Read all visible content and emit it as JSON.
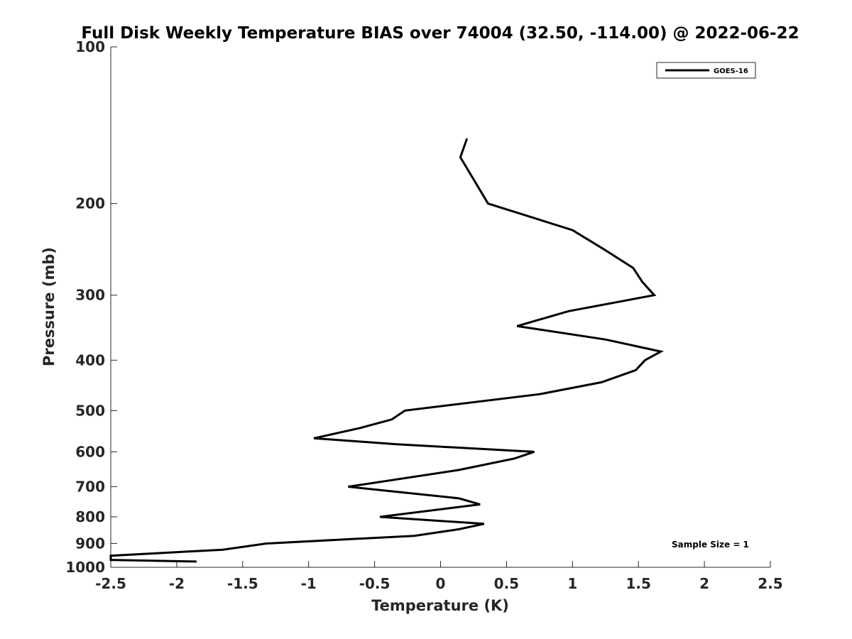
{
  "chart_data": {
    "type": "line",
    "title": "Full Disk Weekly Temperature BIAS over 74004 (32.50, -114.00) @ 2022-06-22",
    "xlabel": "Temperature (K)",
    "ylabel": "Pressure (mb)",
    "xlim": [
      -2.5,
      2.5
    ],
    "ylim": [
      100,
      1000
    ],
    "yscale": "log",
    "y_reversed": true,
    "grid": false,
    "legend_position": "top-right",
    "x_ticks": [
      -2.5,
      -2,
      -1.5,
      -1,
      -0.5,
      0,
      0.5,
      1,
      1.5,
      2,
      2.5
    ],
    "x_tick_labels": [
      "-2.5",
      "-2",
      "-1.5",
      "-1",
      "-0.5",
      "0",
      "0.5",
      "1",
      "1.5",
      "2",
      "2.5"
    ],
    "y_ticks": [
      100,
      200,
      300,
      400,
      500,
      600,
      700,
      800,
      900,
      1000
    ],
    "y_tick_labels": [
      "100",
      "200",
      "300",
      "400",
      "500",
      "600",
      "700",
      "800",
      "900",
      "1000"
    ],
    "series": [
      {
        "name": "GOES-16",
        "color": "#000000",
        "points": [
          {
            "x": 0.2,
            "y": 150
          },
          {
            "x": 0.15,
            "y": 163
          },
          {
            "x": 0.36,
            "y": 200
          },
          {
            "x": 1.0,
            "y": 225
          },
          {
            "x": 1.24,
            "y": 245
          },
          {
            "x": 1.46,
            "y": 266
          },
          {
            "x": 1.53,
            "y": 283
          },
          {
            "x": 1.62,
            "y": 300
          },
          {
            "x": 0.97,
            "y": 322
          },
          {
            "x": 0.58,
            "y": 344
          },
          {
            "x": 1.25,
            "y": 365
          },
          {
            "x": 1.67,
            "y": 385
          },
          {
            "x": 1.55,
            "y": 400
          },
          {
            "x": 1.48,
            "y": 418
          },
          {
            "x": 1.22,
            "y": 441
          },
          {
            "x": 0.75,
            "y": 465
          },
          {
            "x": -0.27,
            "y": 500
          },
          {
            "x": -0.37,
            "y": 520
          },
          {
            "x": -0.61,
            "y": 540
          },
          {
            "x": -0.96,
            "y": 565
          },
          {
            "x": -0.34,
            "y": 580
          },
          {
            "x": 0.71,
            "y": 600
          },
          {
            "x": 0.56,
            "y": 618
          },
          {
            "x": 0.14,
            "y": 650
          },
          {
            "x": -0.7,
            "y": 700
          },
          {
            "x": 0.14,
            "y": 737
          },
          {
            "x": 0.3,
            "y": 757
          },
          {
            "x": -0.46,
            "y": 800
          },
          {
            "x": 0.33,
            "y": 825
          },
          {
            "x": 0.14,
            "y": 845
          },
          {
            "x": -0.2,
            "y": 870
          },
          {
            "x": -1.32,
            "y": 900
          },
          {
            "x": -1.65,
            "y": 925
          },
          {
            "x": -2.5,
            "y": 950
          },
          {
            "x": -2.5,
            "y": 968
          },
          {
            "x": -1.85,
            "y": 975
          }
        ]
      }
    ],
    "annotation": "Sample Size = 1"
  }
}
